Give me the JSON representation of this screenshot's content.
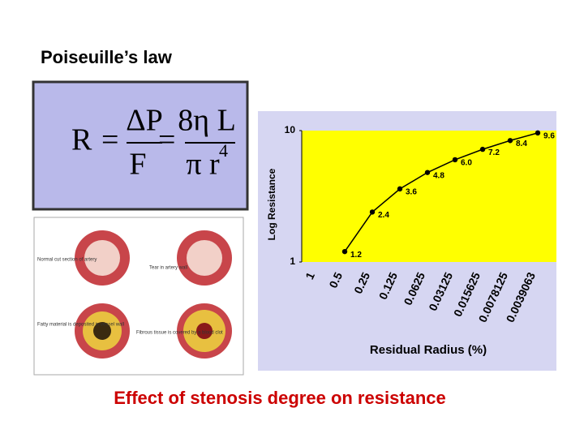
{
  "title": "Poiseuille’s law",
  "caption": "Effect of stenosis degree on resistance",
  "formula": {
    "lhs": "R",
    "eq1": "=",
    "num1": "ΔP",
    "den1": "F",
    "eq2": "=",
    "num2": "8η L",
    "den2": "π r",
    "exp": "4"
  },
  "artery": {
    "labels": [
      "Normal cut section of artery",
      "Tear in artery wall",
      "Fatty material is deposited in vessel wall",
      "Fibrous tissue is covered by a blood clot"
    ]
  },
  "chart_data": {
    "type": "line",
    "y_label": "Log Resistance",
    "x_label": "Residual Radius (%)",
    "categories": [
      "1",
      "0.5",
      "0.25",
      "0.125",
      "0.0625",
      "0.03125",
      "0.015625",
      "0.0078125",
      "0.0039063"
    ],
    "values": [
      null,
      1.2,
      2.4,
      3.6,
      4.8,
      6.0,
      7.2,
      8.4,
      9.6
    ],
    "value_labels": [
      null,
      "1.2",
      "2.4",
      "3.6",
      "4.8",
      "6.0",
      "7.2",
      "8.4",
      "9.6"
    ],
    "color": "#000000",
    "background": "#ffff00",
    "ylim": [
      1,
      10
    ],
    "yticks": [
      1,
      10
    ],
    "log_y": true
  }
}
